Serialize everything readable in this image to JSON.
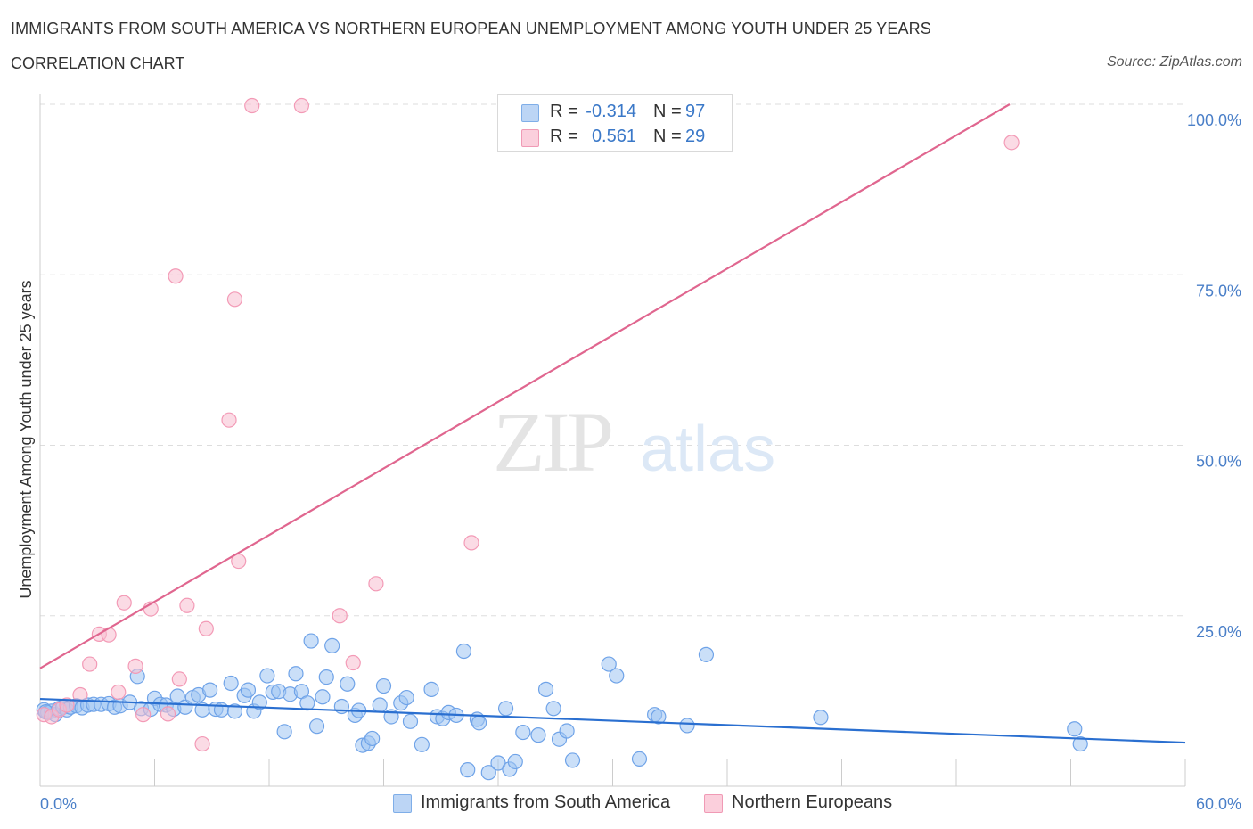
{
  "header": {
    "title": "IMMIGRANTS FROM SOUTH AMERICA VS NORTHERN EUROPEAN UNEMPLOYMENT AMONG YOUTH UNDER 25 YEARS",
    "subtitle": "CORRELATION CHART",
    "source": "Source: ZipAtlas.com"
  },
  "watermark": {
    "zip": "ZIP",
    "atlas": "atlas"
  },
  "legend": {
    "rows": [
      {
        "r_label": "R =",
        "r_value": "-0.314",
        "n_label": "N =",
        "n_value": "97",
        "color": "#a9c8f2"
      },
      {
        "r_label": "R =",
        "r_value": "0.561",
        "n_label": "N =",
        "n_value": "29",
        "color": "#f7b8cb"
      }
    ]
  },
  "bottom_legend": {
    "items": [
      {
        "label": "Immigrants from South America",
        "color": "#a9c8f2"
      },
      {
        "label": "Northern Europeans",
        "color": "#f7b8cb"
      }
    ]
  },
  "chart_data": {
    "type": "scatter",
    "title": "IMMIGRANTS FROM SOUTH AMERICA VS NORTHERN EUROPEAN UNEMPLOYMENT AMONG YOUTH UNDER 25 YEARS",
    "xlabel": "",
    "ylabel": "Unemployment Among Youth under 25 years",
    "xlim": [
      0,
      60
    ],
    "ylim": [
      0,
      100
    ],
    "x_tick_labels": [
      "0.0%",
      "60.0%"
    ],
    "y_tick_labels": [
      "100.0%",
      "75.0%",
      "50.0%",
      "25.0%"
    ],
    "y_ticks": [
      100,
      75,
      50,
      25
    ],
    "grid": true,
    "legend_position": "top-center",
    "series": [
      {
        "name": "Immigrants from South America",
        "color": "#6fa3e8",
        "trend": {
          "x": [
            0,
            60
          ],
          "y": [
            12.8,
            6.4
          ]
        },
        "points": [
          [
            0.2,
            11.2
          ],
          [
            0.4,
            10.8
          ],
          [
            0.6,
            11.0
          ],
          [
            0.8,
            10.5
          ],
          [
            1.0,
            11.4
          ],
          [
            1.2,
            11.6
          ],
          [
            1.4,
            11.2
          ],
          [
            1.6,
            11.6
          ],
          [
            1.9,
            11.8
          ],
          [
            2.2,
            11.5
          ],
          [
            2.5,
            11.9
          ],
          [
            2.8,
            12.0
          ],
          [
            3.2,
            12.0
          ],
          [
            3.6,
            12.1
          ],
          [
            3.9,
            11.6
          ],
          [
            4.2,
            11.8
          ],
          [
            4.7,
            12.3
          ],
          [
            5.1,
            16.1
          ],
          [
            5.3,
            11.4
          ],
          [
            5.8,
            11.3
          ],
          [
            6.0,
            12.9
          ],
          [
            6.3,
            12.0
          ],
          [
            6.6,
            11.9
          ],
          [
            7.0,
            11.3
          ],
          [
            7.2,
            13.2
          ],
          [
            7.6,
            11.6
          ],
          [
            8.0,
            13.0
          ],
          [
            8.3,
            13.4
          ],
          [
            8.5,
            11.2
          ],
          [
            8.9,
            14.1
          ],
          [
            9.2,
            11.3
          ],
          [
            9.5,
            11.2
          ],
          [
            10.0,
            15.1
          ],
          [
            10.2,
            11.0
          ],
          [
            10.7,
            13.3
          ],
          [
            10.9,
            14.1
          ],
          [
            11.2,
            11.0
          ],
          [
            11.5,
            12.3
          ],
          [
            11.9,
            16.2
          ],
          [
            12.2,
            13.8
          ],
          [
            12.5,
            13.9
          ],
          [
            12.8,
            8.0
          ],
          [
            13.1,
            13.5
          ],
          [
            13.4,
            16.5
          ],
          [
            13.7,
            13.9
          ],
          [
            14.0,
            12.2
          ],
          [
            14.2,
            21.3
          ],
          [
            14.5,
            8.8
          ],
          [
            14.8,
            13.1
          ],
          [
            15.0,
            16.0
          ],
          [
            15.3,
            20.6
          ],
          [
            15.8,
            11.7
          ],
          [
            16.1,
            15.0
          ],
          [
            16.5,
            10.4
          ],
          [
            16.7,
            11.1
          ],
          [
            16.9,
            6.0
          ],
          [
            17.2,
            6.3
          ],
          [
            17.4,
            7.0
          ],
          [
            17.8,
            11.9
          ],
          [
            18.0,
            14.7
          ],
          [
            18.4,
            10.2
          ],
          [
            18.9,
            12.2
          ],
          [
            19.2,
            13.0
          ],
          [
            19.4,
            9.5
          ],
          [
            20.0,
            6.1
          ],
          [
            20.5,
            14.2
          ],
          [
            20.8,
            10.2
          ],
          [
            21.1,
            9.9
          ],
          [
            21.4,
            10.8
          ],
          [
            21.8,
            10.4
          ],
          [
            22.2,
            19.8
          ],
          [
            22.4,
            2.4
          ],
          [
            22.9,
            9.8
          ],
          [
            23.0,
            9.3
          ],
          [
            23.5,
            2.0
          ],
          [
            24.0,
            3.4
          ],
          [
            24.4,
            11.4
          ],
          [
            24.6,
            2.5
          ],
          [
            24.9,
            3.6
          ],
          [
            25.3,
            7.9
          ],
          [
            26.1,
            7.5
          ],
          [
            26.5,
            14.2
          ],
          [
            26.9,
            11.4
          ],
          [
            27.2,
            6.9
          ],
          [
            27.6,
            8.1
          ],
          [
            27.9,
            3.8
          ],
          [
            29.8,
            17.9
          ],
          [
            30.2,
            16.2
          ],
          [
            31.4,
            4.0
          ],
          [
            32.2,
            10.5
          ],
          [
            32.4,
            10.2
          ],
          [
            33.9,
            8.9
          ],
          [
            34.9,
            19.3
          ],
          [
            40.9,
            10.1
          ],
          [
            54.2,
            8.4
          ],
          [
            54.5,
            6.2
          ],
          [
            0.3,
            10.9
          ]
        ]
      },
      {
        "name": "Northern Europeans",
        "color": "#f39ab6",
        "trend": {
          "x": [
            0,
            50.8
          ],
          "y": [
            17.3,
            100
          ]
        },
        "points": [
          [
            0.2,
            10.5
          ],
          [
            0.6,
            10.2
          ],
          [
            1.0,
            11.2
          ],
          [
            1.4,
            11.9
          ],
          [
            2.1,
            13.4
          ],
          [
            2.6,
            17.9
          ],
          [
            3.1,
            22.3
          ],
          [
            3.6,
            22.2
          ],
          [
            4.1,
            13.8
          ],
          [
            4.4,
            26.9
          ],
          [
            5.0,
            17.6
          ],
          [
            5.4,
            10.5
          ],
          [
            5.8,
            26.0
          ],
          [
            6.7,
            10.6
          ],
          [
            7.1,
            74.8
          ],
          [
            7.3,
            15.7
          ],
          [
            7.7,
            26.5
          ],
          [
            8.5,
            6.2
          ],
          [
            8.7,
            23.1
          ],
          [
            9.9,
            53.7
          ],
          [
            10.2,
            71.4
          ],
          [
            10.4,
            33.0
          ],
          [
            11.1,
            99.8
          ],
          [
            13.7,
            99.8
          ],
          [
            15.7,
            25.0
          ],
          [
            16.4,
            18.1
          ],
          [
            17.6,
            29.7
          ],
          [
            22.6,
            35.7
          ],
          [
            50.9,
            94.4
          ]
        ]
      }
    ]
  }
}
